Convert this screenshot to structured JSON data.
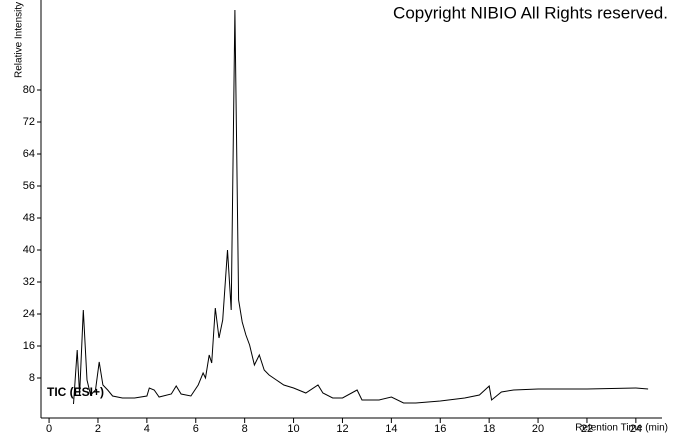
{
  "chart_data": {
    "type": "line",
    "title": "Copyright NIBIO All Rights reserved.",
    "annotation": "TIC (ESI+)",
    "x_label": "Retention Time (min)",
    "y_label": "Relative Intensity",
    "x": [
      1.0,
      1.15,
      1.25,
      1.4,
      1.55,
      1.7,
      1.9,
      2.05,
      2.2,
      2.4,
      2.6,
      3.0,
      3.5,
      4.0,
      4.1,
      4.3,
      4.5,
      5.0,
      5.2,
      5.4,
      5.8,
      6.1,
      6.3,
      6.4,
      6.55,
      6.65,
      6.8,
      6.95,
      7.1,
      7.3,
      7.45,
      7.6,
      7.75,
      7.9,
      8.05,
      8.2,
      8.4,
      8.6,
      8.8,
      9.0,
      9.3,
      9.6,
      10.0,
      10.5,
      11.0,
      11.2,
      11.6,
      12.0,
      12.6,
      12.8,
      13.5,
      14.0,
      14.5,
      15.0,
      16.0,
      17.0,
      17.6,
      18.0,
      18.1,
      18.5,
      19.0,
      20.0,
      22.0,
      24.0,
      24.5
    ],
    "series": [
      {
        "name": "TIC (ESI+)",
        "color": "#000000",
        "values": [
          1.5,
          15,
          3.75,
          25,
          7.5,
          3.75,
          5,
          12,
          6.25,
          5,
          3.5,
          3,
          3,
          3.5,
          5.5,
          5,
          3.25,
          4,
          6,
          4,
          3.5,
          6.25,
          9.25,
          8,
          13.75,
          11.75,
          25.5,
          18,
          22.5,
          40,
          25,
          100,
          27.5,
          22,
          18.75,
          16.25,
          11.25,
          13.75,
          10,
          8.75,
          7.5,
          6.25,
          5.5,
          4.25,
          6.25,
          4.25,
          3,
          3,
          5,
          2.5,
          2.5,
          3.25,
          1.75,
          1.75,
          2.25,
          3,
          3.75,
          6,
          2.5,
          4.5,
          5,
          5.25,
          5.25,
          5.5,
          5.25
        ]
      }
    ],
    "xlim": [
      -0.33,
      25
    ],
    "xticks": [
      0,
      2,
      4,
      6,
      8,
      10,
      12,
      14,
      16,
      18,
      20,
      22,
      24
    ],
    "ylim": [
      -2,
      102
    ],
    "yticks": [
      8,
      16,
      24,
      32,
      40,
      48,
      56,
      64,
      72,
      80
    ]
  }
}
